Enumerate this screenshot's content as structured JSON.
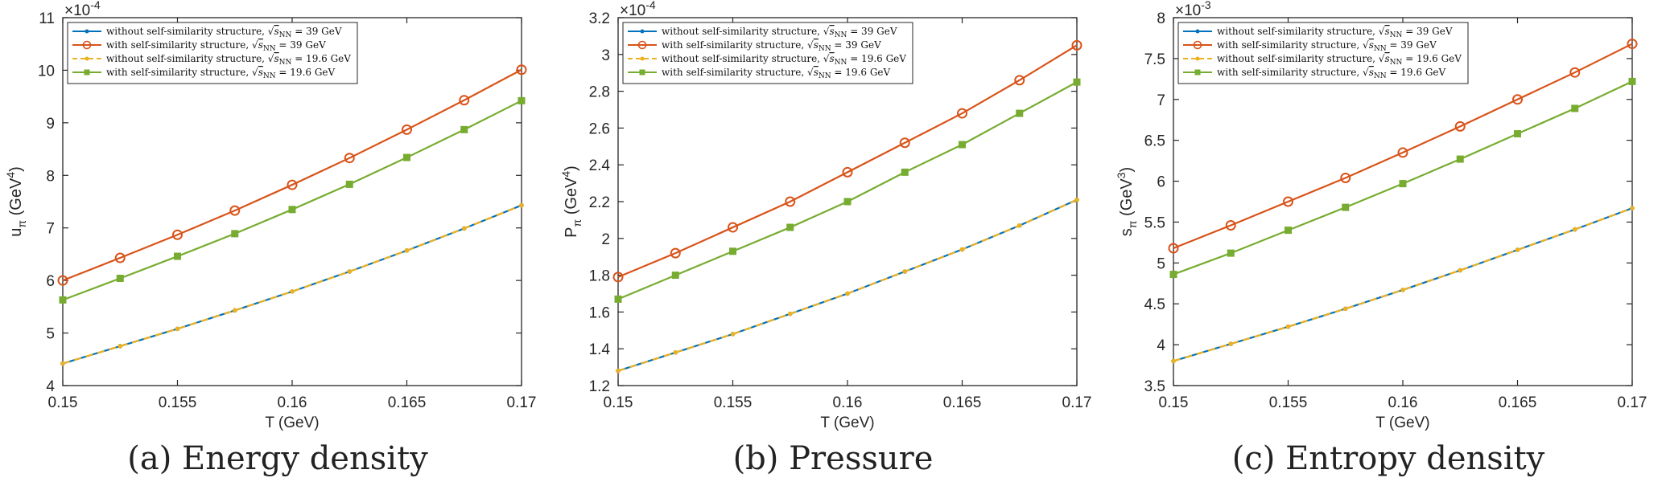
{
  "colors": {
    "s1": "#0072BD",
    "s2": "#D95319",
    "s3": "#EDB120",
    "s4": "#77AC30",
    "axis": "#262626"
  },
  "legend_entries": [
    "without self-similarity structure, √sNN = 39 GeV",
    "with self-similarity structure, √sNN = 39 GeV",
    "without self-similarity structure, √sNN = 19.6 GeV",
    "with self-similarity structure, √sNN = 19.6 GeV"
  ],
  "legend": {
    "e1_prefix": "without self-similarity structure, ",
    "e1_suffix": " = 39 GeV",
    "e2_prefix": "with self-similarity structure, ",
    "e2_suffix": " = 39 GeV",
    "e3_prefix": "without self-similarity structure, ",
    "e3_suffix": " = 19.6 GeV",
    "e4_prefix": "with self-similarity structure, ",
    "e4_suffix": " = 19.6 GeV",
    "sqrt_symbol": "√",
    "s_letter": "s",
    "nn_sub": "NN"
  },
  "captions": [
    {
      "letter": "(a)",
      "text": "Energy density"
    },
    {
      "letter": "(b)",
      "text": "Pressure"
    },
    {
      "letter": "(c)",
      "text": "Entropy density"
    }
  ],
  "chart_data": [
    {
      "type": "line",
      "xlabel": "T (GeV)",
      "ylabel_base": "u",
      "ylabel_sub": "π",
      "ylabel_unit": "(GeV",
      "ylabel_sup": "4",
      "ylabel_close": ")",
      "exponent_base": "×10",
      "exponent_power": "-4",
      "xlim": [
        0.15,
        0.17
      ],
      "ylim": [
        4,
        11
      ],
      "xticks": [
        0.15,
        0.155,
        0.16,
        0.165,
        0.17
      ],
      "xtick_labels": [
        "0.15",
        "0.155",
        "0.16",
        "0.165",
        "0.17"
      ],
      "yticks": [
        4,
        5,
        6,
        7,
        8,
        9,
        10,
        11
      ],
      "ytick_labels": [
        "4",
        "5",
        "6",
        "7",
        "8",
        "9",
        "10",
        "11"
      ],
      "x": [
        0.15,
        0.1525,
        0.155,
        0.1575,
        0.16,
        0.1625,
        0.165,
        0.1675,
        0.17
      ],
      "series": [
        {
          "values": [
            4.42,
            4.75,
            5.08,
            5.43,
            5.79,
            6.17,
            6.57,
            6.99,
            7.43
          ]
        },
        {
          "values": [
            6.0,
            6.43,
            6.87,
            7.33,
            7.82,
            8.33,
            8.87,
            9.43,
            10.01
          ]
        },
        {
          "values": [
            4.42,
            4.75,
            5.08,
            5.43,
            5.79,
            6.17,
            6.57,
            6.99,
            7.43
          ]
        },
        {
          "values": [
            5.63,
            6.04,
            6.46,
            6.89,
            7.35,
            7.83,
            8.34,
            8.87,
            9.42
          ]
        }
      ]
    },
    {
      "type": "line",
      "xlabel": "T (GeV)",
      "ylabel_base": "P",
      "ylabel_sub": "π",
      "ylabel_unit": "(GeV",
      "ylabel_sup": "4",
      "ylabel_close": ")",
      "exponent_base": "×10",
      "exponent_power": "-4",
      "xlim": [
        0.15,
        0.17
      ],
      "ylim": [
        1.2,
        3.2
      ],
      "xticks": [
        0.15,
        0.155,
        0.16,
        0.165,
        0.17
      ],
      "xtick_labels": [
        "0.15",
        "0.155",
        "0.16",
        "0.165",
        "0.17"
      ],
      "yticks": [
        1.2,
        1.4,
        1.6,
        1.8,
        2.0,
        2.2,
        2.4,
        2.6,
        2.8,
        3.0,
        3.2
      ],
      "ytick_labels": [
        "1.2",
        "1.4",
        "1.6",
        "1.8",
        "2",
        "2.2",
        "2.4",
        "2.6",
        "2.8",
        "3",
        "3.2"
      ],
      "x": [
        0.15,
        0.1525,
        0.155,
        0.1575,
        0.16,
        0.1625,
        0.165,
        0.1675,
        0.17
      ],
      "series": [
        {
          "values": [
            1.28,
            1.38,
            1.48,
            1.59,
            1.7,
            1.82,
            1.94,
            2.07,
            2.21
          ]
        },
        {
          "values": [
            1.79,
            1.92,
            2.06,
            2.2,
            2.36,
            2.52,
            2.68,
            2.86,
            3.05
          ]
        },
        {
          "values": [
            1.28,
            1.38,
            1.48,
            1.59,
            1.7,
            1.82,
            1.94,
            2.07,
            2.21
          ]
        },
        {
          "values": [
            1.67,
            1.8,
            1.93,
            2.06,
            2.2,
            2.36,
            2.51,
            2.68,
            2.85
          ]
        }
      ]
    },
    {
      "type": "line",
      "xlabel": "T (GeV)",
      "ylabel_base": "s",
      "ylabel_sub": "π",
      "ylabel_unit": "(GeV",
      "ylabel_sup": "3",
      "ylabel_close": ")",
      "exponent_base": "×10",
      "exponent_power": "-3",
      "xlim": [
        0.15,
        0.17
      ],
      "ylim": [
        3.5,
        8
      ],
      "xticks": [
        0.15,
        0.155,
        0.16,
        0.165,
        0.17
      ],
      "xtick_labels": [
        "0.15",
        "0.155",
        "0.16",
        "0.165",
        "0.17"
      ],
      "yticks": [
        3.5,
        4,
        4.5,
        5,
        5.5,
        6,
        6.5,
        7,
        7.5,
        8
      ],
      "ytick_labels": [
        "3.5",
        "4",
        "4.5",
        "5",
        "5.5",
        "6",
        "6.5",
        "7",
        "7.5",
        "8"
      ],
      "x": [
        0.15,
        0.1525,
        0.155,
        0.1575,
        0.16,
        0.1625,
        0.165,
        0.1675,
        0.17
      ],
      "series": [
        {
          "values": [
            3.8,
            4.01,
            4.22,
            4.44,
            4.67,
            4.91,
            5.16,
            5.41,
            5.67
          ]
        },
        {
          "values": [
            5.18,
            5.46,
            5.75,
            6.04,
            6.35,
            6.67,
            7.0,
            7.33,
            7.68
          ]
        },
        {
          "values": [
            3.8,
            4.01,
            4.22,
            4.44,
            4.67,
            4.91,
            5.16,
            5.41,
            5.67
          ]
        },
        {
          "values": [
            4.86,
            5.12,
            5.4,
            5.68,
            5.97,
            6.27,
            6.58,
            6.89,
            7.22
          ]
        }
      ]
    }
  ]
}
